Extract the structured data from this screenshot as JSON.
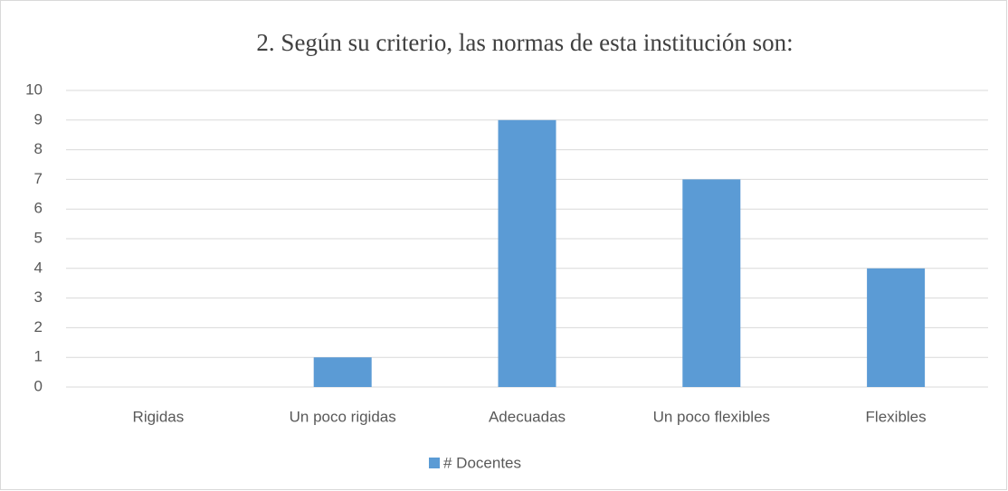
{
  "chart_data": {
    "type": "bar",
    "title": "2. Según su criterio, las normas de esta institución son:",
    "categories": [
      "Rigidas",
      "Un poco rigidas",
      "Adecuadas",
      "Un poco flexibles",
      "Flexibles"
    ],
    "series": [
      {
        "name": "# Docentes",
        "color": "#5b9bd5",
        "values": [
          0,
          1,
          9,
          7,
          4
        ]
      }
    ],
    "ylim": [
      0,
      10
    ],
    "yticks": [
      0,
      1,
      2,
      3,
      4,
      5,
      6,
      7,
      8,
      9,
      10
    ],
    "grid": true,
    "legend": "bottom"
  }
}
